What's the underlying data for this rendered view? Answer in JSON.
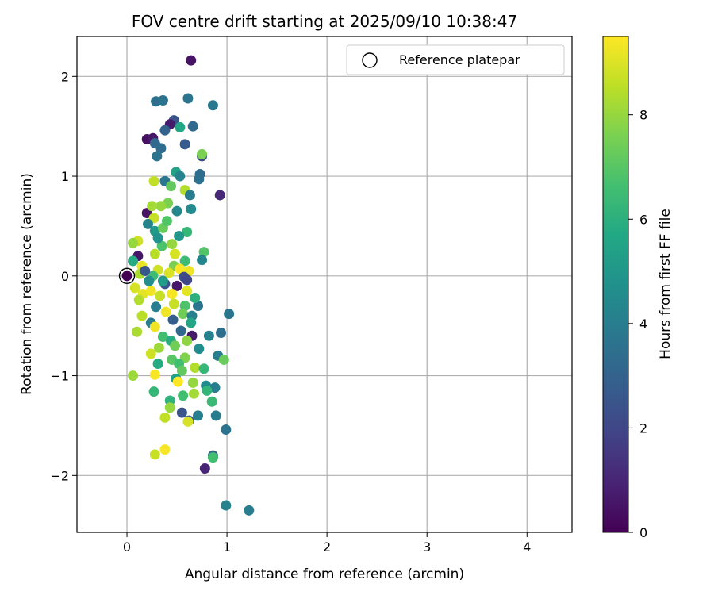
{
  "chart_data": {
    "type": "scatter",
    "title": "FOV centre drift starting at 2025/09/10 10:38:47",
    "xlabel": "Angular distance from reference (arcmin)",
    "ylabel": "Rotation from reference (arcmin)",
    "xlim": [
      -0.5,
      4.45
    ],
    "ylim": [
      -2.57,
      2.4
    ],
    "xticks": [
      0,
      1,
      2,
      3,
      4
    ],
    "yticks": [
      -2,
      -1,
      0,
      1,
      2
    ],
    "xtick_labels": [
      "0",
      "1",
      "2",
      "3",
      "4"
    ],
    "ytick_labels": [
      "−2",
      "−1",
      "0",
      "1",
      "2"
    ],
    "grid": true,
    "legend": {
      "position": "top-right",
      "label": "Reference platepar"
    },
    "reference_point": {
      "x": 0,
      "y": 0
    },
    "colorbar": {
      "label": "Hours from first FF file",
      "min": 0,
      "max": 9.5,
      "ticks": [
        0,
        2,
        4,
        6,
        8
      ],
      "tick_labels": [
        "0",
        "2",
        "4",
        "6",
        "8"
      ],
      "colormap": "viridis"
    },
    "points": [
      [
        0.64,
        2.16,
        0.5
      ],
      [
        0.29,
        1.75,
        3.5
      ],
      [
        0.36,
        1.76,
        3.6
      ],
      [
        0.61,
        1.78,
        3.7
      ],
      [
        0.86,
        1.71,
        3.8
      ],
      [
        0.47,
        1.56,
        2.5
      ],
      [
        0.43,
        1.52,
        0.7
      ],
      [
        0.53,
        1.49,
        5.6
      ],
      [
        0.66,
        1.5,
        3.3
      ],
      [
        0.38,
        1.46,
        3.0
      ],
      [
        0.2,
        1.37,
        0.4
      ],
      [
        0.26,
        1.38,
        0.6
      ],
      [
        0.28,
        1.33,
        3.2
      ],
      [
        0.34,
        1.28,
        3.4
      ],
      [
        0.58,
        1.32,
        2.7
      ],
      [
        0.3,
        1.2,
        3.6
      ],
      [
        0.75,
        1.2,
        2.0
      ],
      [
        0.75,
        1.22,
        7.6
      ],
      [
        0.49,
        1.04,
        5.4
      ],
      [
        0.53,
        1.0,
        4.2
      ],
      [
        0.73,
        1.02,
        3.4
      ],
      [
        0.72,
        0.97,
        3.5
      ],
      [
        0.38,
        0.95,
        3.7
      ],
      [
        0.27,
        0.95,
        8.6
      ],
      [
        0.44,
        0.9,
        7.2
      ],
      [
        0.58,
        0.86,
        8.4
      ],
      [
        0.63,
        0.81,
        3.9
      ],
      [
        0.93,
        0.81,
        1.1
      ],
      [
        0.41,
        0.73,
        7.6
      ],
      [
        0.34,
        0.7,
        8.0
      ],
      [
        0.64,
        0.67,
        4.5
      ],
      [
        0.2,
        0.63,
        0.5
      ],
      [
        0.27,
        0.58,
        8.7
      ],
      [
        0.21,
        0.52,
        4.2
      ],
      [
        0.28,
        0.45,
        5.1
      ],
      [
        0.36,
        0.48,
        7.3
      ],
      [
        0.6,
        0.44,
        6.3
      ],
      [
        0.11,
        0.35,
        8.8
      ],
      [
        0.06,
        0.33,
        8.0
      ],
      [
        0.35,
        0.3,
        6.8
      ],
      [
        0.45,
        0.32,
        8.0
      ],
      [
        0.77,
        0.24,
        6.9
      ],
      [
        0.11,
        0.2,
        0.6
      ],
      [
        0.28,
        0.22,
        8.5
      ],
      [
        0.48,
        0.22,
        8.9
      ],
      [
        0.58,
        0.15,
        6.5
      ],
      [
        0.75,
        0.16,
        4.3
      ],
      [
        0.06,
        0.15,
        5.8
      ],
      [
        0.15,
        0.1,
        9.2
      ],
      [
        0.31,
        0.06,
        8.8
      ],
      [
        0.47,
        0.1,
        7.6
      ],
      [
        0.62,
        0.05,
        9.3
      ],
      [
        0.53,
        0.07,
        9.5
      ],
      [
        0.13,
        0.02,
        8.3
      ],
      [
        0.26,
        0.0,
        6.5
      ],
      [
        0.42,
        0.03,
        9.0
      ],
      [
        0.57,
        -0.01,
        2.2
      ],
      [
        0.22,
        -0.05,
        4.6
      ],
      [
        0.38,
        -0.08,
        2.5
      ],
      [
        0.5,
        -0.1,
        0.6
      ],
      [
        0.6,
        -0.04,
        2.0
      ],
      [
        0.08,
        -0.12,
        8.9
      ],
      [
        0.16,
        -0.18,
        9.1
      ],
      [
        0.24,
        -0.15,
        9.3
      ],
      [
        0.33,
        -0.2,
        8.7
      ],
      [
        0.45,
        -0.18,
        9.4
      ],
      [
        0.6,
        -0.15,
        9.1
      ],
      [
        0.12,
        -0.24,
        8.4
      ],
      [
        0.29,
        -0.31,
        4.0
      ],
      [
        0.47,
        -0.28,
        8.7
      ],
      [
        0.58,
        -0.3,
        6.8
      ],
      [
        0.71,
        -0.3,
        3.6
      ],
      [
        0.39,
        -0.36,
        9.3
      ],
      [
        0.56,
        -0.38,
        7.4
      ],
      [
        0.65,
        -0.4,
        4.1
      ],
      [
        0.24,
        -0.47,
        3.9
      ],
      [
        0.46,
        -0.44,
        2.8
      ],
      [
        0.64,
        -0.47,
        5.6
      ],
      [
        0.28,
        -0.51,
        9.3
      ],
      [
        0.54,
        -0.55,
        3.2
      ],
      [
        0.65,
        -0.6,
        0.7
      ],
      [
        0.82,
        -0.6,
        4.2
      ],
      [
        0.94,
        -0.57,
        3.5
      ],
      [
        1.02,
        -0.38,
        3.7
      ],
      [
        0.1,
        -0.56,
        8.3
      ],
      [
        0.36,
        -0.61,
        6.6
      ],
      [
        0.44,
        -0.65,
        5.9
      ],
      [
        0.6,
        -0.65,
        7.9
      ],
      [
        0.72,
        -0.73,
        4.6
      ],
      [
        0.32,
        -0.72,
        8.1
      ],
      [
        0.48,
        -0.7,
        7.4
      ],
      [
        0.24,
        -0.78,
        8.8
      ],
      [
        0.45,
        -0.84,
        7.0
      ],
      [
        0.58,
        -0.82,
        7.7
      ],
      [
        0.91,
        -0.8,
        4.0
      ],
      [
        0.97,
        -0.84,
        7.3
      ],
      [
        0.31,
        -0.88,
        5.8
      ],
      [
        0.52,
        -0.88,
        6.6
      ],
      [
        0.68,
        -0.92,
        8.4
      ],
      [
        0.77,
        -0.93,
        6.3
      ],
      [
        0.06,
        -1.0,
        8.1
      ],
      [
        0.28,
        -0.99,
        9.4
      ],
      [
        0.49,
        -1.03,
        5.4
      ],
      [
        0.66,
        -1.07,
        8.0
      ],
      [
        0.79,
        -1.1,
        4.5
      ],
      [
        0.88,
        -1.12,
        4.0
      ],
      [
        0.51,
        -1.06,
        9.5
      ],
      [
        0.27,
        -1.16,
        6.3
      ],
      [
        0.43,
        -1.25,
        6.1
      ],
      [
        0.56,
        -1.2,
        6.6
      ],
      [
        0.67,
        -1.18,
        8.2
      ],
      [
        0.8,
        -1.15,
        6.2
      ],
      [
        0.43,
        -1.32,
        8.0
      ],
      [
        0.55,
        -1.37,
        2.5
      ],
      [
        0.71,
        -1.4,
        4.1
      ],
      [
        0.89,
        -1.4,
        3.9
      ],
      [
        0.85,
        -1.26,
        6.4
      ],
      [
        0.38,
        -1.42,
        8.6
      ],
      [
        0.62,
        -1.45,
        3.0
      ],
      [
        0.61,
        -1.46,
        8.9
      ],
      [
        0.99,
        -1.54,
        3.6
      ],
      [
        0.38,
        -1.74,
        9.4
      ],
      [
        0.28,
        -1.79,
        8.7
      ],
      [
        0.86,
        -1.8,
        3.0
      ],
      [
        0.86,
        -1.82,
        6.6
      ],
      [
        0.78,
        -1.93,
        1.0
      ],
      [
        0.99,
        -2.3,
        4.2
      ],
      [
        1.22,
        -2.35,
        4.0
      ],
      [
        0.31,
        0.38,
        4.8
      ],
      [
        0.4,
        0.55,
        6.9
      ],
      [
        0.18,
        0.05,
        2.6
      ],
      [
        0.52,
        0.4,
        5.0
      ],
      [
        0.25,
        0.7,
        8.2
      ],
      [
        0.5,
        0.65,
        4.4
      ],
      [
        0.36,
        -0.05,
        5.2
      ],
      [
        0.68,
        -0.22,
        6.0
      ],
      [
        0.15,
        -0.4,
        8.5
      ],
      [
        0.55,
        -0.95,
        7.2
      ]
    ]
  }
}
